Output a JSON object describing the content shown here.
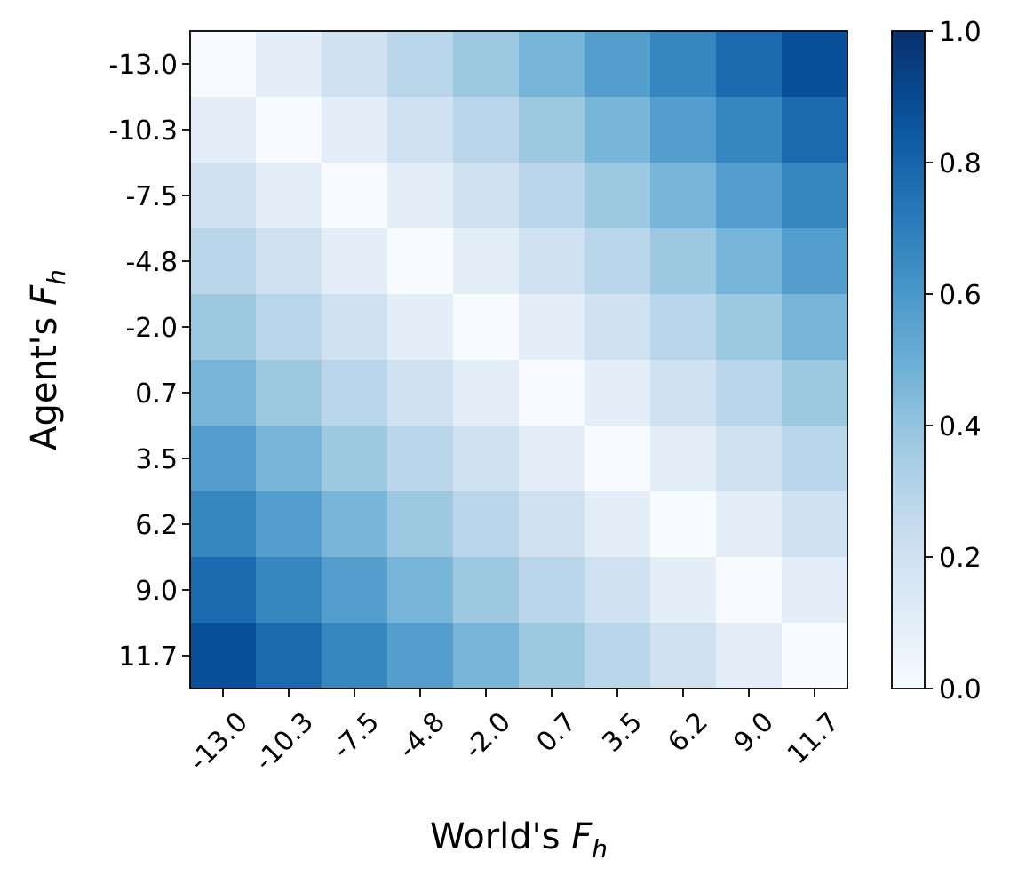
{
  "chart_data": {
    "type": "heatmap",
    "title": "",
    "xlabel": {
      "prefix": "World's ",
      "var": "F",
      "sub": "h"
    },
    "ylabel": {
      "prefix": "Agent's ",
      "var": "F",
      "sub": "h"
    },
    "x_ticks": [
      "-13.0",
      "-10.3",
      "-7.5",
      "-4.8",
      "-2.0",
      "0.7",
      "3.5",
      "6.2",
      "9.0",
      "11.7"
    ],
    "y_ticks": [
      "-13.0",
      "-10.3",
      "-7.5",
      "-4.8",
      "-2.0",
      "0.7",
      "3.5",
      "6.2",
      "9.0",
      "11.7"
    ],
    "colormap": "Blues",
    "colorbar": {
      "min": 0.0,
      "max": 1.0,
      "ticks": [
        "0.0",
        "0.2",
        "0.4",
        "0.6",
        "0.8",
        "1.0"
      ]
    },
    "values": [
      [
        0.0,
        0.1,
        0.2,
        0.29,
        0.38,
        0.47,
        0.57,
        0.67,
        0.78,
        0.88
      ],
      [
        0.1,
        0.0,
        0.1,
        0.2,
        0.29,
        0.38,
        0.47,
        0.57,
        0.67,
        0.78
      ],
      [
        0.2,
        0.1,
        0.0,
        0.1,
        0.2,
        0.29,
        0.38,
        0.47,
        0.57,
        0.67
      ],
      [
        0.29,
        0.2,
        0.1,
        0.0,
        0.1,
        0.2,
        0.29,
        0.38,
        0.47,
        0.57
      ],
      [
        0.38,
        0.29,
        0.2,
        0.1,
        0.0,
        0.1,
        0.2,
        0.29,
        0.38,
        0.47
      ],
      [
        0.47,
        0.38,
        0.29,
        0.2,
        0.1,
        0.0,
        0.1,
        0.2,
        0.29,
        0.38
      ],
      [
        0.57,
        0.47,
        0.38,
        0.29,
        0.2,
        0.1,
        0.0,
        0.1,
        0.2,
        0.29
      ],
      [
        0.67,
        0.57,
        0.47,
        0.38,
        0.29,
        0.2,
        0.1,
        0.0,
        0.1,
        0.2
      ],
      [
        0.78,
        0.67,
        0.57,
        0.47,
        0.38,
        0.29,
        0.2,
        0.1,
        0.0,
        0.1
      ],
      [
        0.88,
        0.78,
        0.67,
        0.57,
        0.47,
        0.38,
        0.29,
        0.2,
        0.1,
        0.0
      ]
    ]
  }
}
